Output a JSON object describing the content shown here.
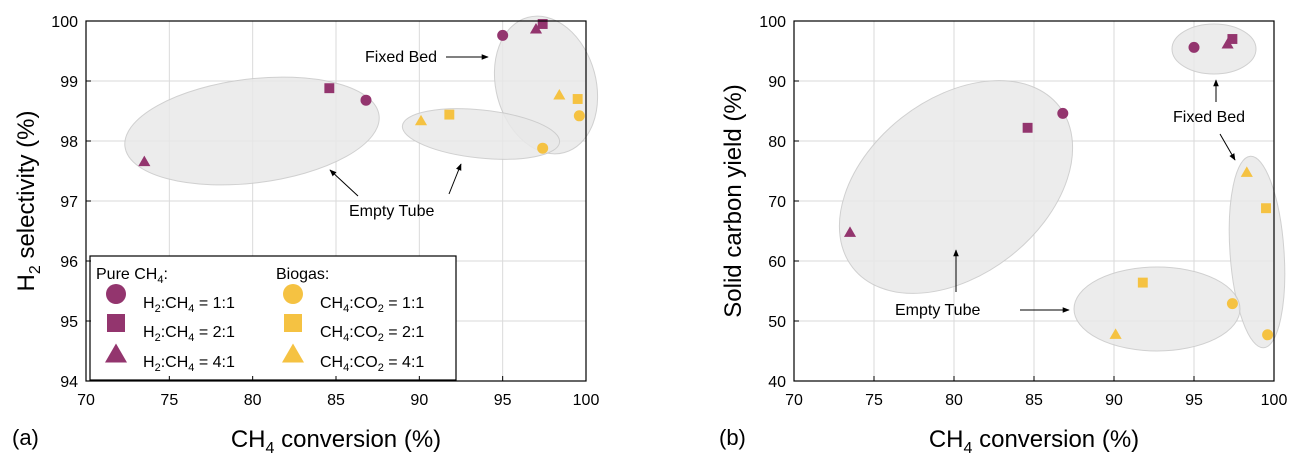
{
  "colors": {
    "purple": "#93356E",
    "yellow": "#F5C242",
    "ellipse_fill": "#E9E9E9",
    "ellipse_stroke": "#C8C8C8",
    "grid": "#DADADA"
  },
  "legend": {
    "pure_header": "Pure CH4:",
    "biogas_header": "Biogas:",
    "items": [
      {
        "group": "pure",
        "marker": "circle",
        "label": "H2:CH4 = 1:1"
      },
      {
        "group": "pure",
        "marker": "square",
        "label": "H2:CH4 = 2:1"
      },
      {
        "group": "pure",
        "marker": "triangle",
        "label": "H2:CH4 = 4:1"
      },
      {
        "group": "biogas",
        "marker": "circle",
        "label": "CH4:CO2 = 1:1"
      },
      {
        "group": "biogas",
        "marker": "square",
        "label": "CH4:CO2 = 2:1"
      },
      {
        "group": "biogas",
        "marker": "triangle",
        "label": "CH4:CO2 = 4:1"
      }
    ]
  },
  "chart_data": [
    {
      "type": "scatter",
      "panel_label": "(a)",
      "xlabel": "CH4 conversion (%)",
      "ylabel": "H2 selectivity (%)",
      "xlim": [
        70,
        100
      ],
      "ylim": [
        94,
        100
      ],
      "xticks": [
        70,
        75,
        80,
        85,
        90,
        95,
        100
      ],
      "yticks": [
        94,
        95,
        96,
        97,
        98,
        99,
        100
      ],
      "grid": true,
      "legend_position": "bottom-left",
      "series": [
        {
          "name": "H2:CH4 = 1:1",
          "color": "purple",
          "marker": "circle",
          "points": [
            [
              86.8,
              98.68
            ],
            [
              95.0,
              99.76
            ]
          ]
        },
        {
          "name": "H2:CH4 = 2:1",
          "color": "purple",
          "marker": "square",
          "points": [
            [
              84.6,
              98.88
            ],
            [
              97.4,
              99.95
            ]
          ]
        },
        {
          "name": "H2:CH4 = 4:1",
          "color": "purple",
          "marker": "triangle",
          "points": [
            [
              73.5,
              97.66
            ],
            [
              97.0,
              99.87
            ]
          ]
        },
        {
          "name": "CH4:CO2 = 1:1",
          "color": "yellow",
          "marker": "circle",
          "points": [
            [
              97.4,
              97.88
            ],
            [
              99.6,
              98.42
            ]
          ]
        },
        {
          "name": "CH4:CO2 = 2:1",
          "color": "yellow",
          "marker": "square",
          "points": [
            [
              91.8,
              98.44
            ],
            [
              99.5,
              98.7
            ]
          ]
        },
        {
          "name": "CH4:CO2 = 4:1",
          "color": "yellow",
          "marker": "triangle",
          "points": [
            [
              90.1,
              98.34
            ],
            [
              98.4,
              98.77
            ]
          ]
        }
      ],
      "annotations": [
        {
          "text": "Fixed Bed",
          "x": 88.7,
          "y": 99.47
        },
        {
          "text": "Empty Tube",
          "x": 88.7,
          "y": 96.87
        }
      ]
    },
    {
      "type": "scatter",
      "panel_label": "(b)",
      "xlabel": "CH4 conversion (%)",
      "ylabel": "Solid carbon yield (%)",
      "xlim": [
        70,
        100
      ],
      "ylim": [
        40,
        100
      ],
      "xticks": [
        70,
        75,
        80,
        85,
        90,
        95,
        100
      ],
      "yticks": [
        40,
        50,
        60,
        70,
        80,
        90,
        100
      ],
      "grid": true,
      "series": [
        {
          "name": "H2:CH4 = 1:1",
          "color": "purple",
          "marker": "circle",
          "points": [
            [
              86.8,
              84.6
            ],
            [
              95.0,
              95.6
            ]
          ]
        },
        {
          "name": "H2:CH4 = 2:1",
          "color": "purple",
          "marker": "square",
          "points": [
            [
              84.6,
              82.2
            ],
            [
              97.4,
              97.0
            ]
          ]
        },
        {
          "name": "H2:CH4 = 4:1",
          "color": "purple",
          "marker": "triangle",
          "points": [
            [
              73.5,
              64.8
            ],
            [
              97.1,
              96.2
            ]
          ]
        },
        {
          "name": "CH4:CO2 = 1:1",
          "color": "yellow",
          "marker": "circle",
          "points": [
            [
              97.4,
              52.9
            ],
            [
              99.6,
              47.7
            ]
          ]
        },
        {
          "name": "CH4:CO2 = 2:1",
          "color": "yellow",
          "marker": "square",
          "points": [
            [
              91.8,
              56.4
            ],
            [
              99.5,
              68.8
            ]
          ]
        },
        {
          "name": "CH4:CO2 = 4:1",
          "color": "yellow",
          "marker": "triangle",
          "points": [
            [
              90.1,
              47.8
            ],
            [
              98.3,
              74.8
            ]
          ]
        }
      ],
      "annotations": [
        {
          "text": "Fixed Bed",
          "x": 98.0,
          "y": 84.2
        },
        {
          "text": "Empty Tube",
          "x": 78.5,
          "y": 51.4
        }
      ]
    }
  ]
}
